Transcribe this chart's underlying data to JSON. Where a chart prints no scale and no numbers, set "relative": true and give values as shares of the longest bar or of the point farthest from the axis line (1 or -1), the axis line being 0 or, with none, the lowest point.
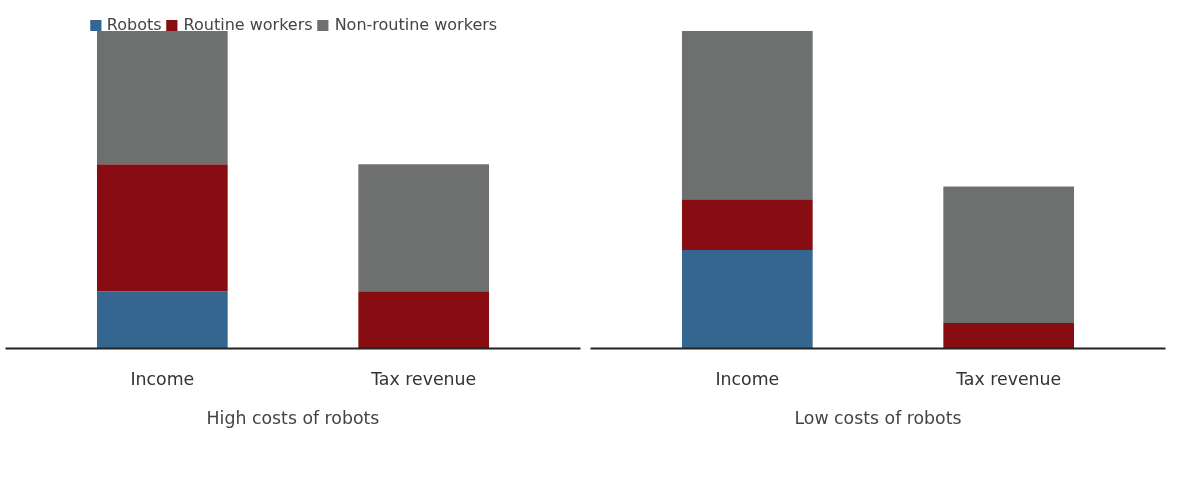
{
  "chart_data": [
    {
      "type": "bar",
      "stacked": true,
      "relative": true,
      "legend": "top",
      "xlabel": "High costs of robots",
      "categories": [
        "Income",
        "Tax revenue"
      ],
      "series": [
        {
          "name": "Robots",
          "color": "#34668f",
          "values": [
            0.18,
            0
          ]
        },
        {
          "name": "Routine workers",
          "color": "#870d12",
          "values": [
            0.4,
            0.18
          ]
        },
        {
          "name": "Non-routine workers",
          "color": "#6e7070",
          "values": [
            0.42,
            0.4
          ]
        }
      ]
    },
    {
      "type": "bar",
      "stacked": true,
      "relative": true,
      "xlabel": "Low costs of robots",
      "categories": [
        "Income",
        "Tax revenue"
      ],
      "series": [
        {
          "color": "#34668f",
          "values": [
            0.31,
            0
          ]
        },
        {
          "color": "#870d12",
          "values": [
            0.16,
            0.08
          ]
        },
        {
          "color": "#6e7070",
          "values": [
            0.53,
            0.43
          ]
        }
      ]
    }
  ]
}
